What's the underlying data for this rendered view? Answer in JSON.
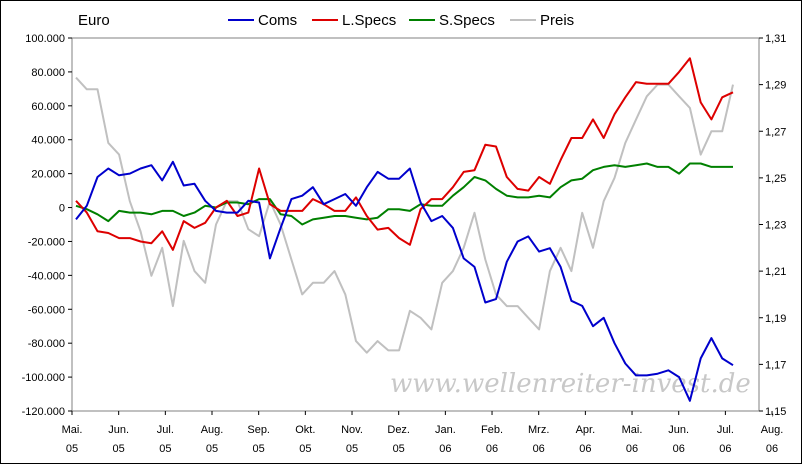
{
  "chart_data": {
    "type": "line",
    "unit_label": "Euro",
    "watermark": "www.wellenreiter-invest.de",
    "legend_position": "top",
    "grid": false,
    "x_ticks": [
      {
        "month": "Mai.",
        "year": "05"
      },
      {
        "month": "Jun.",
        "year": "05"
      },
      {
        "month": "Jul.",
        "year": "05"
      },
      {
        "month": "Aug.",
        "year": "05"
      },
      {
        "month": "Sep.",
        "year": "05"
      },
      {
        "month": "Okt.",
        "year": "05"
      },
      {
        "month": "Nov.",
        "year": "05"
      },
      {
        "month": "Dez.",
        "year": "05"
      },
      {
        "month": "Jan.",
        "year": "06"
      },
      {
        "month": "Feb.",
        "year": "06"
      },
      {
        "month": "Mrz.",
        "year": "06"
      },
      {
        "month": "Apr.",
        "year": "06"
      },
      {
        "month": "Mai.",
        "year": "06"
      },
      {
        "month": "Jun.",
        "year": "06"
      },
      {
        "month": "Jul.",
        "year": "06"
      },
      {
        "month": "Aug.",
        "year": "06"
      }
    ],
    "y_left": {
      "ylim": [
        -120000,
        100000
      ],
      "ticks": [
        "100.000",
        "80.000",
        "60.000",
        "40.000",
        "20.000",
        "0",
        "-20.000",
        "-40.000",
        "-60.000",
        "-80.000",
        "-100.000",
        "-120.000"
      ],
      "tick_values": [
        100000,
        80000,
        60000,
        40000,
        20000,
        0,
        -20000,
        -40000,
        -60000,
        -80000,
        -100000,
        -120000
      ]
    },
    "y_right": {
      "ylim": [
        1.15,
        1.31
      ],
      "ticks": [
        "1,31",
        "1,29",
        "1,27",
        "1,25",
        "1,23",
        "1,21",
        "1,19",
        "1,17",
        "1,15"
      ],
      "tick_values": [
        1.31,
        1.29,
        1.27,
        1.25,
        1.23,
        1.21,
        1.19,
        1.17,
        1.15
      ]
    },
    "x_weeks": [
      0,
      1,
      2,
      3,
      4,
      5,
      6,
      7,
      8,
      9,
      10,
      11,
      12,
      13,
      14,
      15,
      16,
      17,
      18,
      19,
      20,
      21,
      22,
      23,
      24,
      25,
      26,
      27,
      28,
      29,
      30,
      31,
      32,
      33,
      34,
      35,
      36,
      37,
      38,
      39,
      40,
      41,
      42,
      43,
      44,
      45,
      46,
      47,
      48,
      49,
      50,
      51,
      52,
      53,
      54,
      55,
      56,
      57,
      58,
      59,
      60,
      61
    ],
    "series": [
      {
        "name": "Coms",
        "color": "#0000cc",
        "axis": "left",
        "values": [
          -7000,
          1000,
          18000,
          23000,
          19000,
          20000,
          23000,
          25000,
          16000,
          27000,
          13000,
          14000,
          4000,
          -2000,
          -3000,
          -3000,
          4000,
          3000,
          -30000,
          -12000,
          5000,
          7000,
          12000,
          2000,
          5000,
          8000,
          1000,
          12000,
          21000,
          17000,
          17000,
          23000,
          3000,
          -8000,
          -5000,
          -12000,
          -30000,
          -35000,
          -56000,
          -54000,
          -32000,
          -20000,
          -17000,
          -26000,
          -24000,
          -35000,
          -55000,
          -58000,
          -70000,
          -65000,
          -80000,
          -92000,
          -99000,
          -99000,
          -98000,
          -96000,
          -100000,
          -114000,
          -89000,
          -77000,
          -89000,
          -93000
        ]
      },
      {
        "name": "L.Specs",
        "color": "#dd0000",
        "axis": "left",
        "values": [
          4000,
          -3000,
          -14000,
          -15000,
          -18000,
          -18000,
          -20000,
          -21000,
          -14000,
          -25000,
          -8000,
          -12000,
          -9000,
          0,
          4000,
          -5000,
          -3000,
          23000,
          2000,
          -2000,
          -2000,
          -2000,
          5000,
          2000,
          -2000,
          -2000,
          6000,
          -5000,
          -13000,
          -12000,
          -18000,
          -22000,
          -1000,
          5000,
          5000,
          12000,
          21000,
          22000,
          37000,
          36000,
          18000,
          11000,
          10000,
          18000,
          14000,
          28000,
          41000,
          41000,
          52000,
          41000,
          55000,
          65000,
          74000,
          73000,
          73000,
          73000,
          80000,
          88000,
          62000,
          52000,
          65000,
          68000
        ]
      },
      {
        "name": "S.Specs",
        "color": "#008000",
        "axis": "left",
        "values": [
          1000,
          -1000,
          -4000,
          -8000,
          -2000,
          -3000,
          -3000,
          -4000,
          -2000,
          -2000,
          -5000,
          -3000,
          1000,
          0,
          3000,
          3000,
          2000,
          5000,
          5000,
          -4000,
          -5000,
          -10000,
          -7000,
          -6000,
          -5000,
          -5000,
          -6000,
          -7000,
          -6000,
          -1000,
          -1000,
          -2000,
          2000,
          1000,
          1000,
          7000,
          12000,
          18000,
          16000,
          11000,
          7000,
          6000,
          6000,
          7000,
          6000,
          12000,
          16000,
          17000,
          22000,
          24000,
          25000,
          24000,
          25000,
          26000,
          24000,
          24000,
          20000,
          26000,
          26000,
          24000,
          24000,
          24000
        ]
      },
      {
        "name": "Preis",
        "color": "#c0c0c0",
        "axis": "right",
        "values": [
          1.293,
          1.288,
          1.288,
          1.265,
          1.26,
          1.24,
          1.227,
          1.208,
          1.22,
          1.195,
          1.223,
          1.21,
          1.205,
          1.23,
          1.24,
          1.24,
          1.228,
          1.225,
          1.24,
          1.23,
          1.215,
          1.2,
          1.205,
          1.205,
          1.21,
          1.2,
          1.18,
          1.175,
          1.18,
          1.176,
          1.176,
          1.193,
          1.19,
          1.185,
          1.205,
          1.21,
          1.22,
          1.235,
          1.215,
          1.2,
          1.195,
          1.195,
          1.19,
          1.185,
          1.21,
          1.22,
          1.21,
          1.235,
          1.22,
          1.24,
          1.25,
          1.265,
          1.275,
          1.285,
          1.29,
          1.29,
          1.285,
          1.28,
          1.26,
          1.27,
          1.27,
          1.29
        ]
      }
    ]
  }
}
